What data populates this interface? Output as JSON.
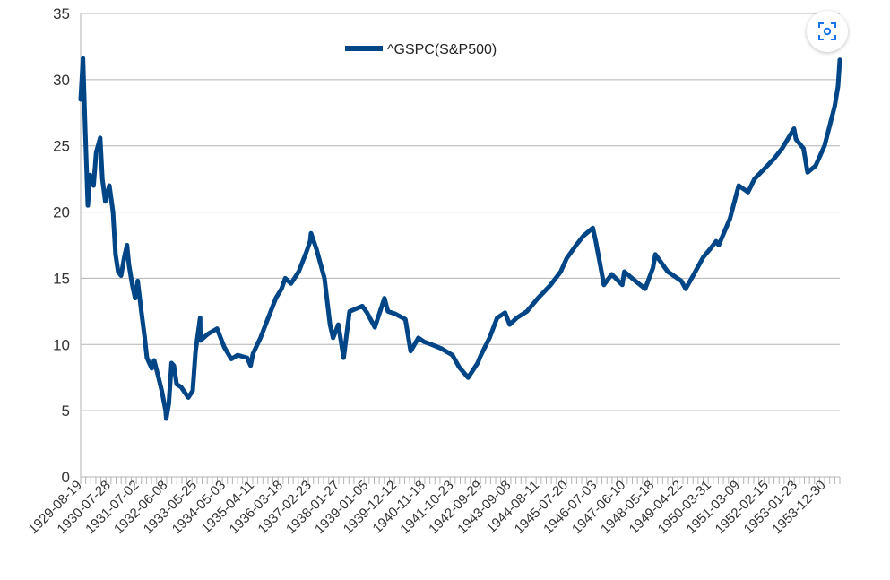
{
  "chart_data": {
    "type": "line",
    "title": "",
    "xlabel": "",
    "ylabel": "",
    "ylim": [
      0,
      35
    ],
    "yticks": [
      0,
      5,
      10,
      15,
      20,
      25,
      30,
      35
    ],
    "grid": "horizontal",
    "legend_position": "top-center",
    "x_tick_labels": [
      "1929-08-19",
      "1930-07-28",
      "1931-07-02",
      "1932-06-08",
      "1933-05-25",
      "1934-05-03",
      "1935-04-11",
      "1936-03-18",
      "1937-02-23",
      "1938-01-27",
      "1939-01-05",
      "1939-12-12",
      "1940-11-18",
      "1941-10-23",
      "1942-09-29",
      "1943-09-08",
      "1944-08-11",
      "1945-07-20",
      "1946-07-03",
      "1947-06-10",
      "1948-05-18",
      "1949-04-22",
      "1950-03-31",
      "1951-03-09",
      "1952-02-15",
      "1953-01-23",
      "1953-12-30"
    ],
    "series": [
      {
        "name": "^GSPC(S&P500)",
        "color": "#004586",
        "x": [
          "1929-08-19",
          "1929-09-16",
          "1929-10-14",
          "1929-11-13",
          "1929-12-10",
          "1930-01-20",
          "1930-02-20",
          "1930-04-10",
          "1930-05-05",
          "1930-06-10",
          "1930-07-28",
          "1930-09-10",
          "1930-10-10",
          "1930-11-10",
          "1930-12-16",
          "1931-01-20",
          "1931-02-24",
          "1931-03-20",
          "1931-04-29",
          "1931-06-02",
          "1931-07-02",
          "1931-08-15",
          "1931-09-25",
          "1931-10-20",
          "1931-12-17",
          "1932-01-15",
          "1932-03-08",
          "1932-04-15",
          "1932-06-01",
          "1932-06-08",
          "1932-07-08",
          "1932-08-10",
          "1932-09-07",
          "1932-10-10",
          "1932-12-01",
          "1933-02-27",
          "1933-04-20",
          "1933-05-25",
          "1933-07-18",
          "1933-07-21",
          "1933-10-21",
          "1934-02-06",
          "1934-05-03",
          "1934-07-26",
          "1934-10-10",
          "1935-02-01",
          "1935-03-14",
          "1935-04-11",
          "1935-07-10",
          "1935-10-10",
          "1936-01-10",
          "1936-03-18",
          "1936-05-01",
          "1936-07-10",
          "1936-10-10",
          "1937-01-10",
          "1937-02-23",
          "1937-03-06",
          "1937-05-10",
          "1937-08-14",
          "1937-10-19",
          "1937-11-24",
          "1938-01-27",
          "1938-03-31",
          "1938-06-10",
          "1938-11-09",
          "1939-01-05",
          "1939-04-08",
          "1939-08-01",
          "1939-09-12",
          "1939-12-12",
          "1940-04-08",
          "1940-06-10",
          "1940-09-10",
          "1940-11-18",
          "1941-02-14",
          "1941-06-10",
          "1941-10-23",
          "1942-01-10",
          "1942-04-28",
          "1942-08-20",
          "1942-09-29",
          "1943-01-10",
          "1943-04-10",
          "1943-07-14",
          "1943-09-08",
          "1943-11-29",
          "1944-04-01",
          "1944-08-11",
          "1945-01-10",
          "1945-05-10",
          "1945-07-20",
          "1945-11-10",
          "1946-02-05",
          "1946-05-29",
          "1946-07-03",
          "1946-09-10",
          "1946-10-09",
          "1947-01-10",
          "1947-05-17",
          "1947-06-10",
          "1947-09-10",
          "1948-02-14",
          "1948-05-18",
          "1948-06-15",
          "1948-11-10",
          "1949-04-22",
          "1949-06-13",
          "1949-09-10",
          "1950-01-10",
          "1950-03-31",
          "1950-06-12",
          "1950-07-13",
          "1950-11-24",
          "1951-03-09",
          "1951-06-29",
          "1951-09-14",
          "1952-02-15",
          "1952-05-01",
          "1952-08-10",
          "1952-12-30",
          "1953-01-23",
          "1953-04-23",
          "1953-06-10",
          "1953-09-14",
          "1953-12-30",
          "1954-03-01",
          "1954-05-01",
          "1954-06-10",
          "1954-07-01"
        ],
        "values": [
          28.5,
          31.6,
          26.0,
          20.5,
          22.8,
          22.0,
          24.5,
          25.6,
          22.5,
          20.8,
          22.0,
          20.0,
          16.8,
          15.5,
          15.2,
          16.5,
          17.5,
          16.0,
          14.5,
          13.5,
          14.8,
          12.5,
          10.5,
          9.0,
          8.2,
          8.8,
          7.5,
          6.5,
          5.0,
          4.4,
          5.5,
          8.6,
          8.4,
          7.0,
          6.8,
          6.0,
          6.5,
          9.5,
          12.0,
          10.3,
          10.8,
          11.2,
          9.8,
          8.9,
          9.2,
          9.0,
          8.4,
          9.3,
          10.5,
          12.0,
          13.5,
          14.2,
          15.0,
          14.6,
          15.5,
          17.0,
          17.8,
          18.4,
          17.2,
          15.0,
          11.5,
          10.5,
          11.5,
          9.0,
          12.5,
          12.9,
          12.4,
          11.3,
          13.5,
          12.5,
          12.3,
          11.9,
          9.5,
          10.5,
          10.2,
          10.0,
          9.7,
          9.2,
          8.3,
          7.5,
          8.6,
          9.2,
          10.5,
          12.0,
          12.4,
          11.5,
          12.0,
          12.5,
          13.5,
          14.5,
          15.5,
          16.5,
          17.5,
          18.2,
          18.8,
          17.8,
          15.5,
          14.5,
          15.3,
          14.5,
          15.5,
          15.0,
          14.2,
          15.8,
          16.8,
          15.5,
          14.8,
          14.2,
          15.2,
          16.6,
          17.2,
          17.8,
          17.5,
          19.5,
          22.0,
          21.5,
          22.5,
          23.5,
          24.0,
          24.8,
          26.3,
          25.5,
          24.8,
          23.0,
          23.5,
          25.0,
          26.5,
          28.0,
          29.5,
          31.5
        ]
      }
    ]
  },
  "ui": {
    "lens_icon": "visual-search-icon"
  }
}
